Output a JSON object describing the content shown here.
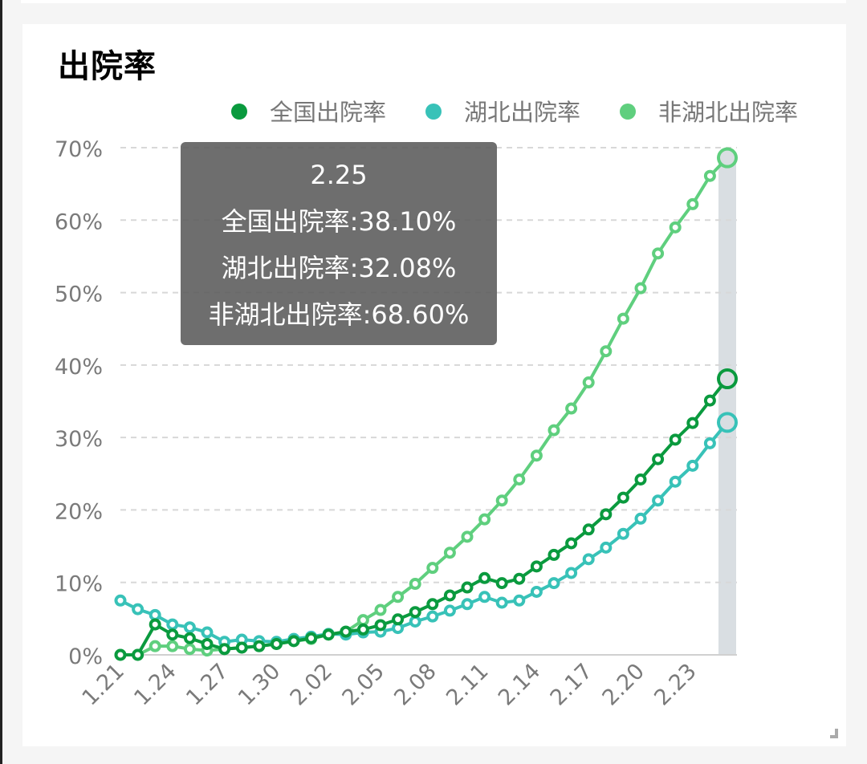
{
  "card": {
    "title": "出院率"
  },
  "legend": [
    {
      "label": "全国出院率",
      "color": "#0a9a3e"
    },
    {
      "label": "湖北出院率",
      "color": "#38c2b8"
    },
    {
      "label": "非湖北出院率",
      "color": "#5fcf7e"
    }
  ],
  "tooltip": {
    "date": "2.25",
    "lines": [
      "全国出院率:38.10%",
      "湖北出院率:32.08%",
      "非湖北出院率:68.60%"
    ]
  },
  "chart_data": {
    "type": "line",
    "title": "出院率",
    "xlabel": "",
    "ylabel": "",
    "ylim": [
      0,
      70
    ],
    "yticks": [
      "0%",
      "10%",
      "20%",
      "30%",
      "40%",
      "50%",
      "60%",
      "70%"
    ],
    "xtick_labels": [
      "1.21",
      "1.24",
      "1.27",
      "1.30",
      "2.02",
      "2.05",
      "2.08",
      "2.11",
      "2.14",
      "2.17",
      "2.20",
      "2.23"
    ],
    "legend_position": "top-right",
    "grid": "horizontal dashed",
    "x": [
      "1.21",
      "1.22",
      "1.23",
      "1.24",
      "1.25",
      "1.26",
      "1.27",
      "1.28",
      "1.29",
      "1.30",
      "1.31",
      "2.01",
      "2.02",
      "2.03",
      "2.04",
      "2.05",
      "2.06",
      "2.07",
      "2.08",
      "2.09",
      "2.10",
      "2.11",
      "2.12",
      "2.13",
      "2.14",
      "2.15",
      "2.16",
      "2.17",
      "2.18",
      "2.19",
      "2.20",
      "2.21",
      "2.22",
      "2.23",
      "2.24",
      "2.25"
    ],
    "series": [
      {
        "name": "全国出院率",
        "color": "#0a9a3e",
        "values": [
          0,
          0,
          4.2,
          2.8,
          2.3,
          1.5,
          0.8,
          1.0,
          1.2,
          1.5,
          1.9,
          2.3,
          2.8,
          3.2,
          3.5,
          4.1,
          4.9,
          5.9,
          7.0,
          8.2,
          9.3,
          10.6,
          9.9,
          10.5,
          12.2,
          13.8,
          15.4,
          17.3,
          19.4,
          21.7,
          24.2,
          27.0,
          29.7,
          32.0,
          35.1,
          38.1
        ]
      },
      {
        "name": "湖北出院率",
        "color": "#38c2b8",
        "values": [
          7.5,
          6.3,
          5.5,
          4.2,
          3.8,
          3.1,
          1.8,
          2.1,
          1.9,
          1.8,
          2.2,
          2.5,
          2.9,
          2.8,
          3.1,
          3.2,
          3.7,
          4.6,
          5.3,
          6.1,
          7.0,
          8.0,
          7.2,
          7.5,
          8.7,
          9.9,
          11.3,
          13.2,
          14.8,
          16.7,
          18.8,
          21.3,
          23.9,
          26.1,
          29.2,
          32.08
        ]
      },
      {
        "name": "非湖北出院率",
        "color": "#5fcf7e",
        "values": [
          0,
          0,
          1.2,
          1.2,
          0.8,
          0.6,
          0.8,
          1.0,
          1.2,
          1.5,
          1.9,
          2.2,
          2.8,
          3.2,
          4.8,
          6.2,
          8.0,
          9.8,
          12.0,
          14.1,
          16.3,
          18.7,
          21.3,
          24.2,
          27.5,
          31.0,
          34.0,
          37.6,
          41.9,
          46.4,
          50.6,
          55.4,
          59.0,
          62.2,
          66.1,
          68.6
        ]
      }
    ]
  }
}
